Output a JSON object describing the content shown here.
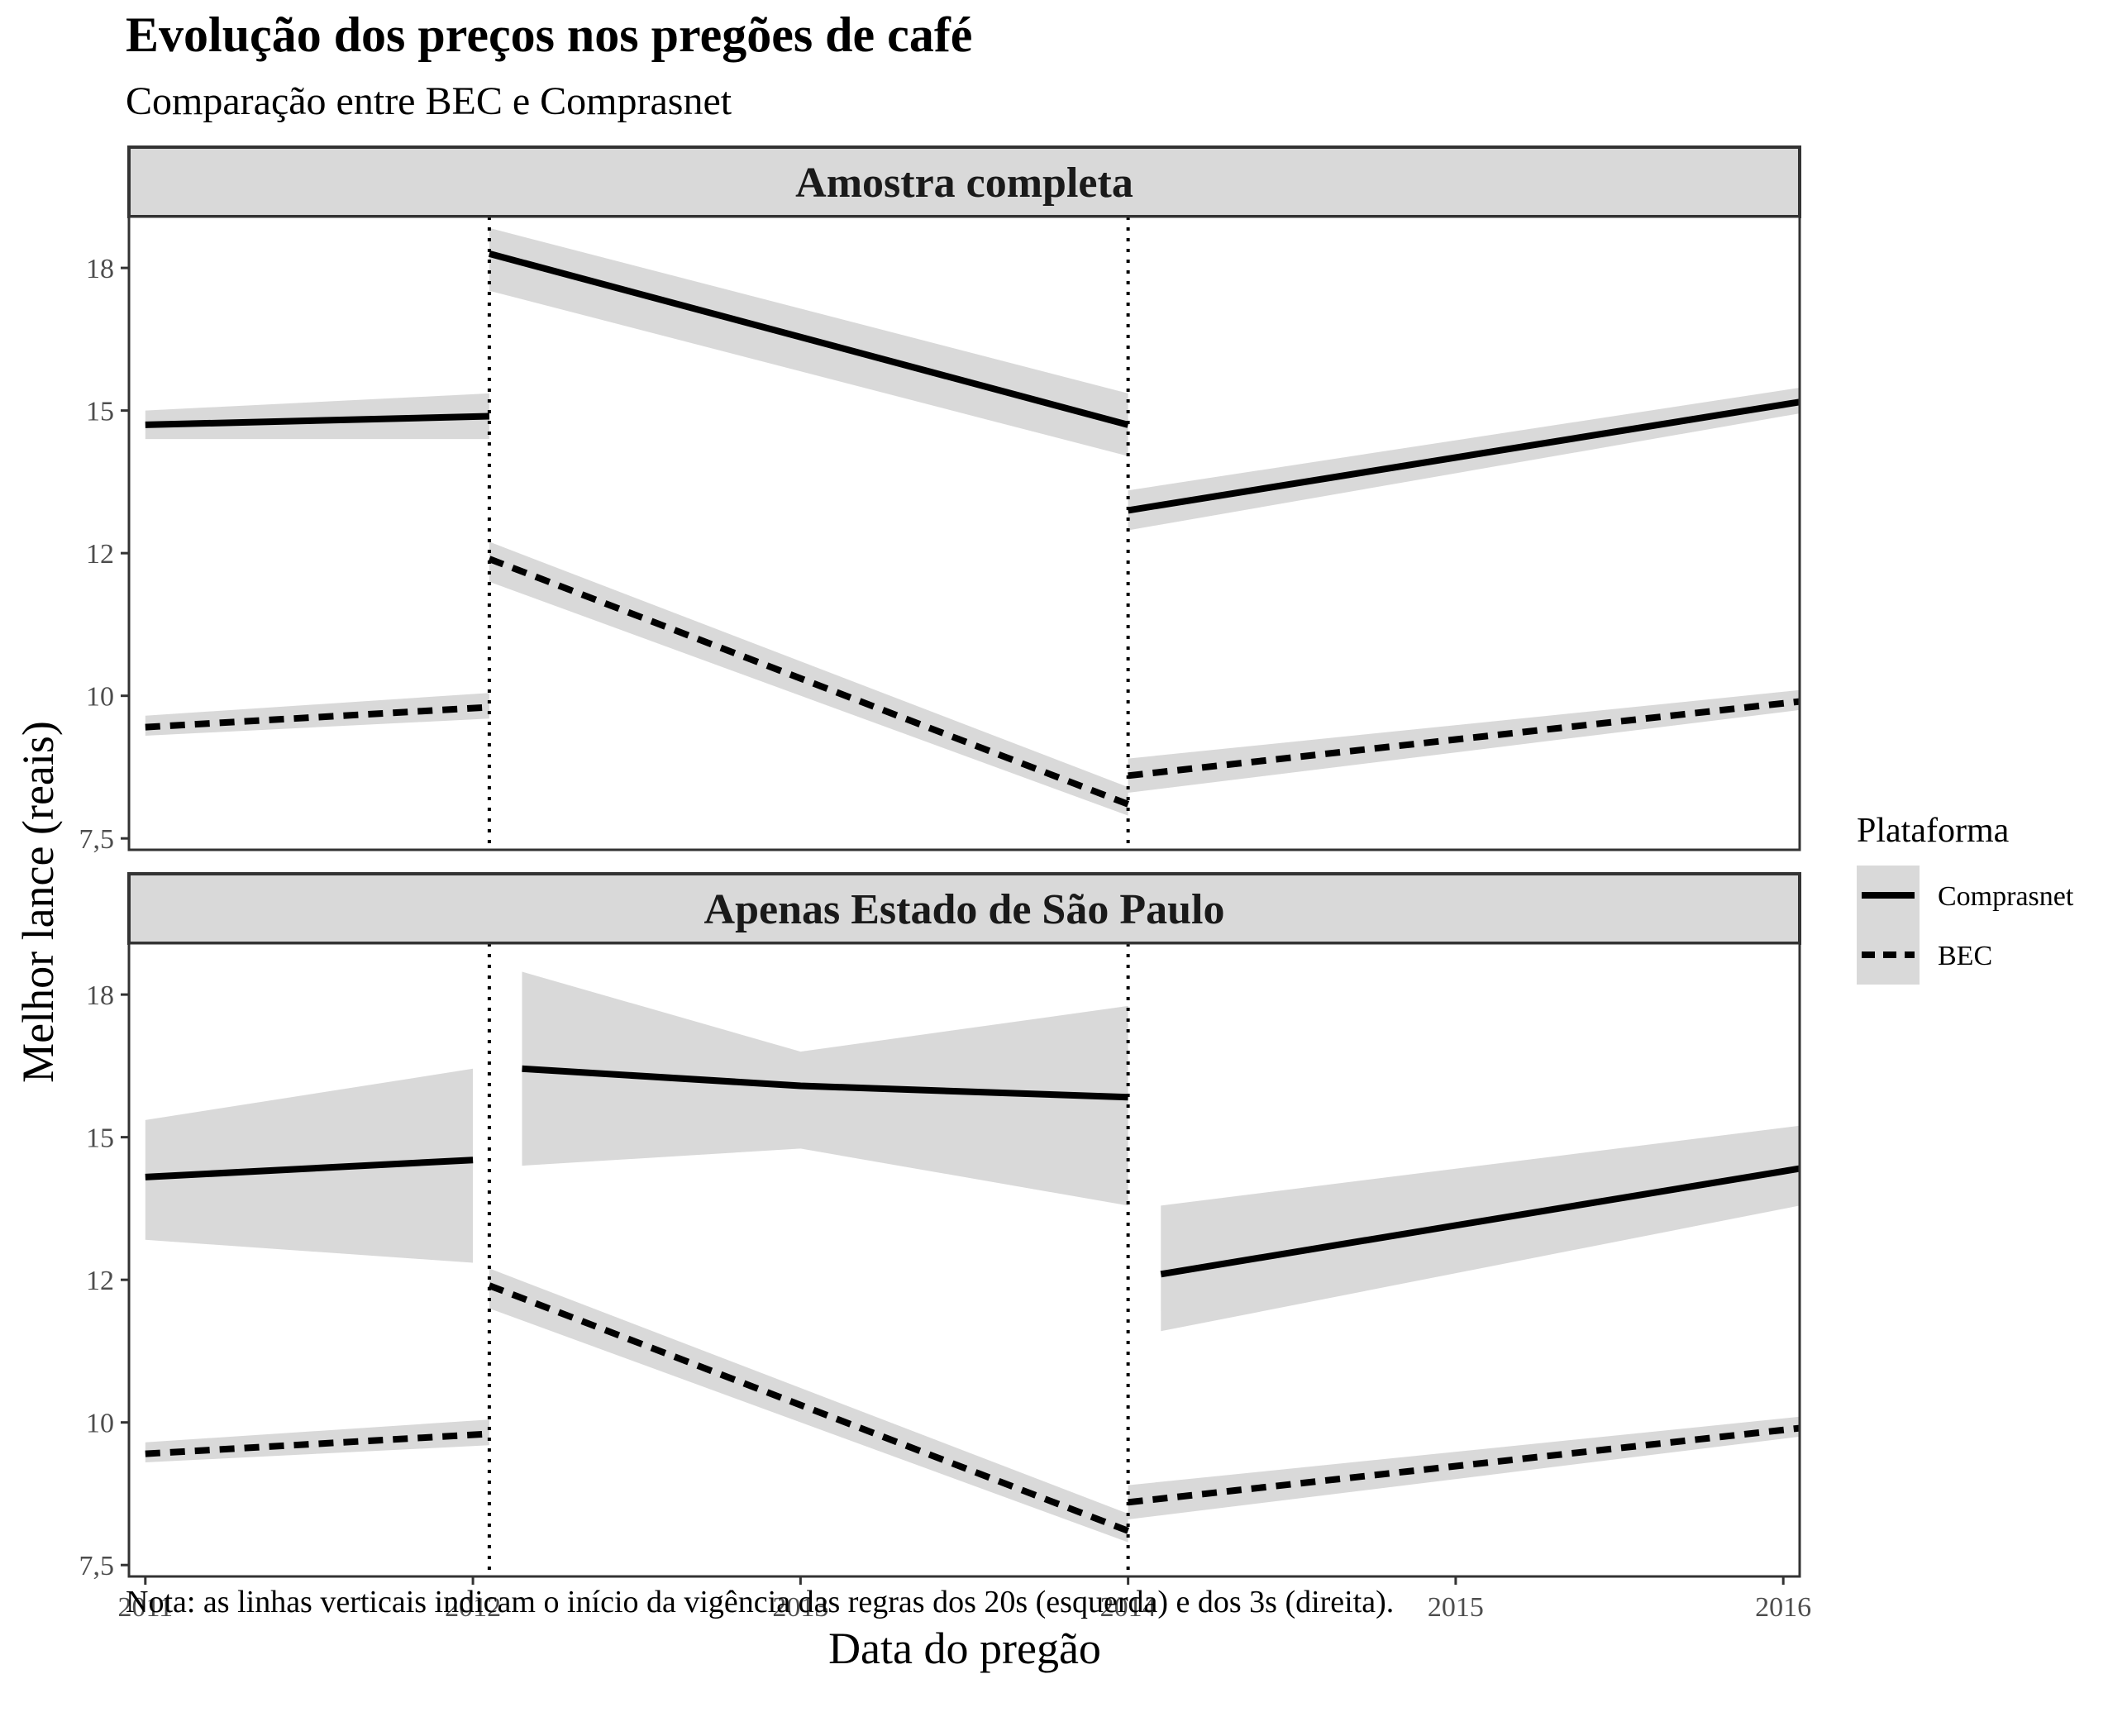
{
  "chart_data": {
    "type": "line",
    "title": "Evolução dos preços nos pregões de café",
    "subtitle": "Comparação entre BEC e Comprasnet",
    "xlabel": "Data do pregão",
    "ylabel": "Melhor lance (reais)",
    "caption": "Nota: as linhas verticais indicam o início da vigência das regras dos 20s (esquerda) e dos 3s (direita).",
    "x_ticks": [
      {
        "value": 2011,
        "label": "2011"
      },
      {
        "value": 2012,
        "label": "2012"
      },
      {
        "value": 2013,
        "label": "2013"
      },
      {
        "value": 2014,
        "label": "2014"
      },
      {
        "value": 2015,
        "label": "2015"
      },
      {
        "value": 2016,
        "label": "2016"
      }
    ],
    "y_ticks": [
      {
        "value": 7.5,
        "label": "7,5"
      },
      {
        "value": 10,
        "label": "10"
      },
      {
        "value": 12.5,
        "label": "12"
      },
      {
        "value": 15,
        "label": "15"
      },
      {
        "value": 17.5,
        "label": "18"
      }
    ],
    "xlim": [
      2010.95,
      2016.05
    ],
    "ylim": [
      7.3,
      18.4
    ],
    "vlines": [
      2012.05,
      2014.0
    ],
    "grid": false,
    "legend": {
      "title": "Plataforma",
      "position": "right",
      "entries": [
        {
          "label": "Comprasnet",
          "linetype": "solid"
        },
        {
          "label": "BEC",
          "linetype": "dashed"
        }
      ]
    },
    "colors": {
      "line": "#000000",
      "ribbon": "#d9d9d9",
      "strip": "#d9d9d9",
      "border": "#333333"
    },
    "panels": [
      {
        "strip": "Amostra completa",
        "series": [
          {
            "platform": "Comprasnet",
            "segments": [
              {
                "x": [
                  2011.0,
                  2012.05
                ],
                "y": [
                  14.75,
                  14.9
                ],
                "lo": [
                  14.5,
                  14.5
                ],
                "hi": [
                  15.0,
                  15.3
                ]
              },
              {
                "x": [
                  2012.05,
                  2014.0
                ],
                "y": [
                  17.75,
                  14.75
                ],
                "lo": [
                  17.1,
                  14.2
                ],
                "hi": [
                  18.2,
                  15.3
                ]
              },
              {
                "x": [
                  2014.0,
                  2016.05
                ],
                "y": [
                  13.25,
                  15.15
                ],
                "lo": [
                  12.9,
                  14.95
                ],
                "hi": [
                  13.6,
                  15.4
                ]
              }
            ]
          },
          {
            "platform": "BEC",
            "segments": [
              {
                "x": [
                  2011.0,
                  2012.05
                ],
                "y": [
                  9.45,
                  9.8
                ],
                "lo": [
                  9.3,
                  9.6
                ],
                "hi": [
                  9.65,
                  10.05
                ]
              },
              {
                "x": [
                  2012.05,
                  2014.0
                ],
                "y": [
                  12.4,
                  8.1
                ],
                "lo": [
                  12.0,
                  7.9
                ],
                "hi": [
                  12.7,
                  8.4
                ]
              },
              {
                "x": [
                  2014.0,
                  2016.05
                ],
                "y": [
                  8.6,
                  9.9
                ],
                "lo": [
                  8.3,
                  9.75
                ],
                "hi": [
                  8.9,
                  10.1
                ]
              }
            ]
          }
        ]
      },
      {
        "strip": "Apenas Estado de São Paulo",
        "series": [
          {
            "platform": "Comprasnet",
            "segments": [
              {
                "x": [
                  2011.0,
                  2012.0
                ],
                "y": [
                  14.3,
                  14.6
                ],
                "lo": [
                  13.2,
                  12.8
                ],
                "hi": [
                  15.3,
                  16.2
                ]
              },
              {
                "x": [
                  2012.15,
                  2013.0,
                  2014.0
                ],
                "y": [
                  16.2,
                  15.9,
                  15.7
                ],
                "lo": [
                  14.5,
                  14.8,
                  13.8
                ],
                "hi": [
                  17.9,
                  16.5,
                  17.3
                ]
              },
              {
                "x": [
                  2014.1,
                  2016.05
                ],
                "y": [
                  12.6,
                  14.45
                ],
                "lo": [
                  11.6,
                  13.8
                ],
                "hi": [
                  13.8,
                  15.2
                ]
              }
            ]
          },
          {
            "platform": "BEC",
            "segments": [
              {
                "x": [
                  2011.0,
                  2012.05
                ],
                "y": [
                  9.45,
                  9.8
                ],
                "lo": [
                  9.3,
                  9.6
                ],
                "hi": [
                  9.65,
                  10.05
                ]
              },
              {
                "x": [
                  2012.05,
                  2014.0
                ],
                "y": [
                  12.4,
                  8.1
                ],
                "lo": [
                  12.0,
                  7.9
                ],
                "hi": [
                  12.7,
                  8.4
                ]
              },
              {
                "x": [
                  2014.0,
                  2016.05
                ],
                "y": [
                  8.6,
                  9.9
                ],
                "lo": [
                  8.3,
                  9.75
                ],
                "hi": [
                  8.9,
                  10.1
                ]
              }
            ]
          }
        ]
      }
    ]
  }
}
